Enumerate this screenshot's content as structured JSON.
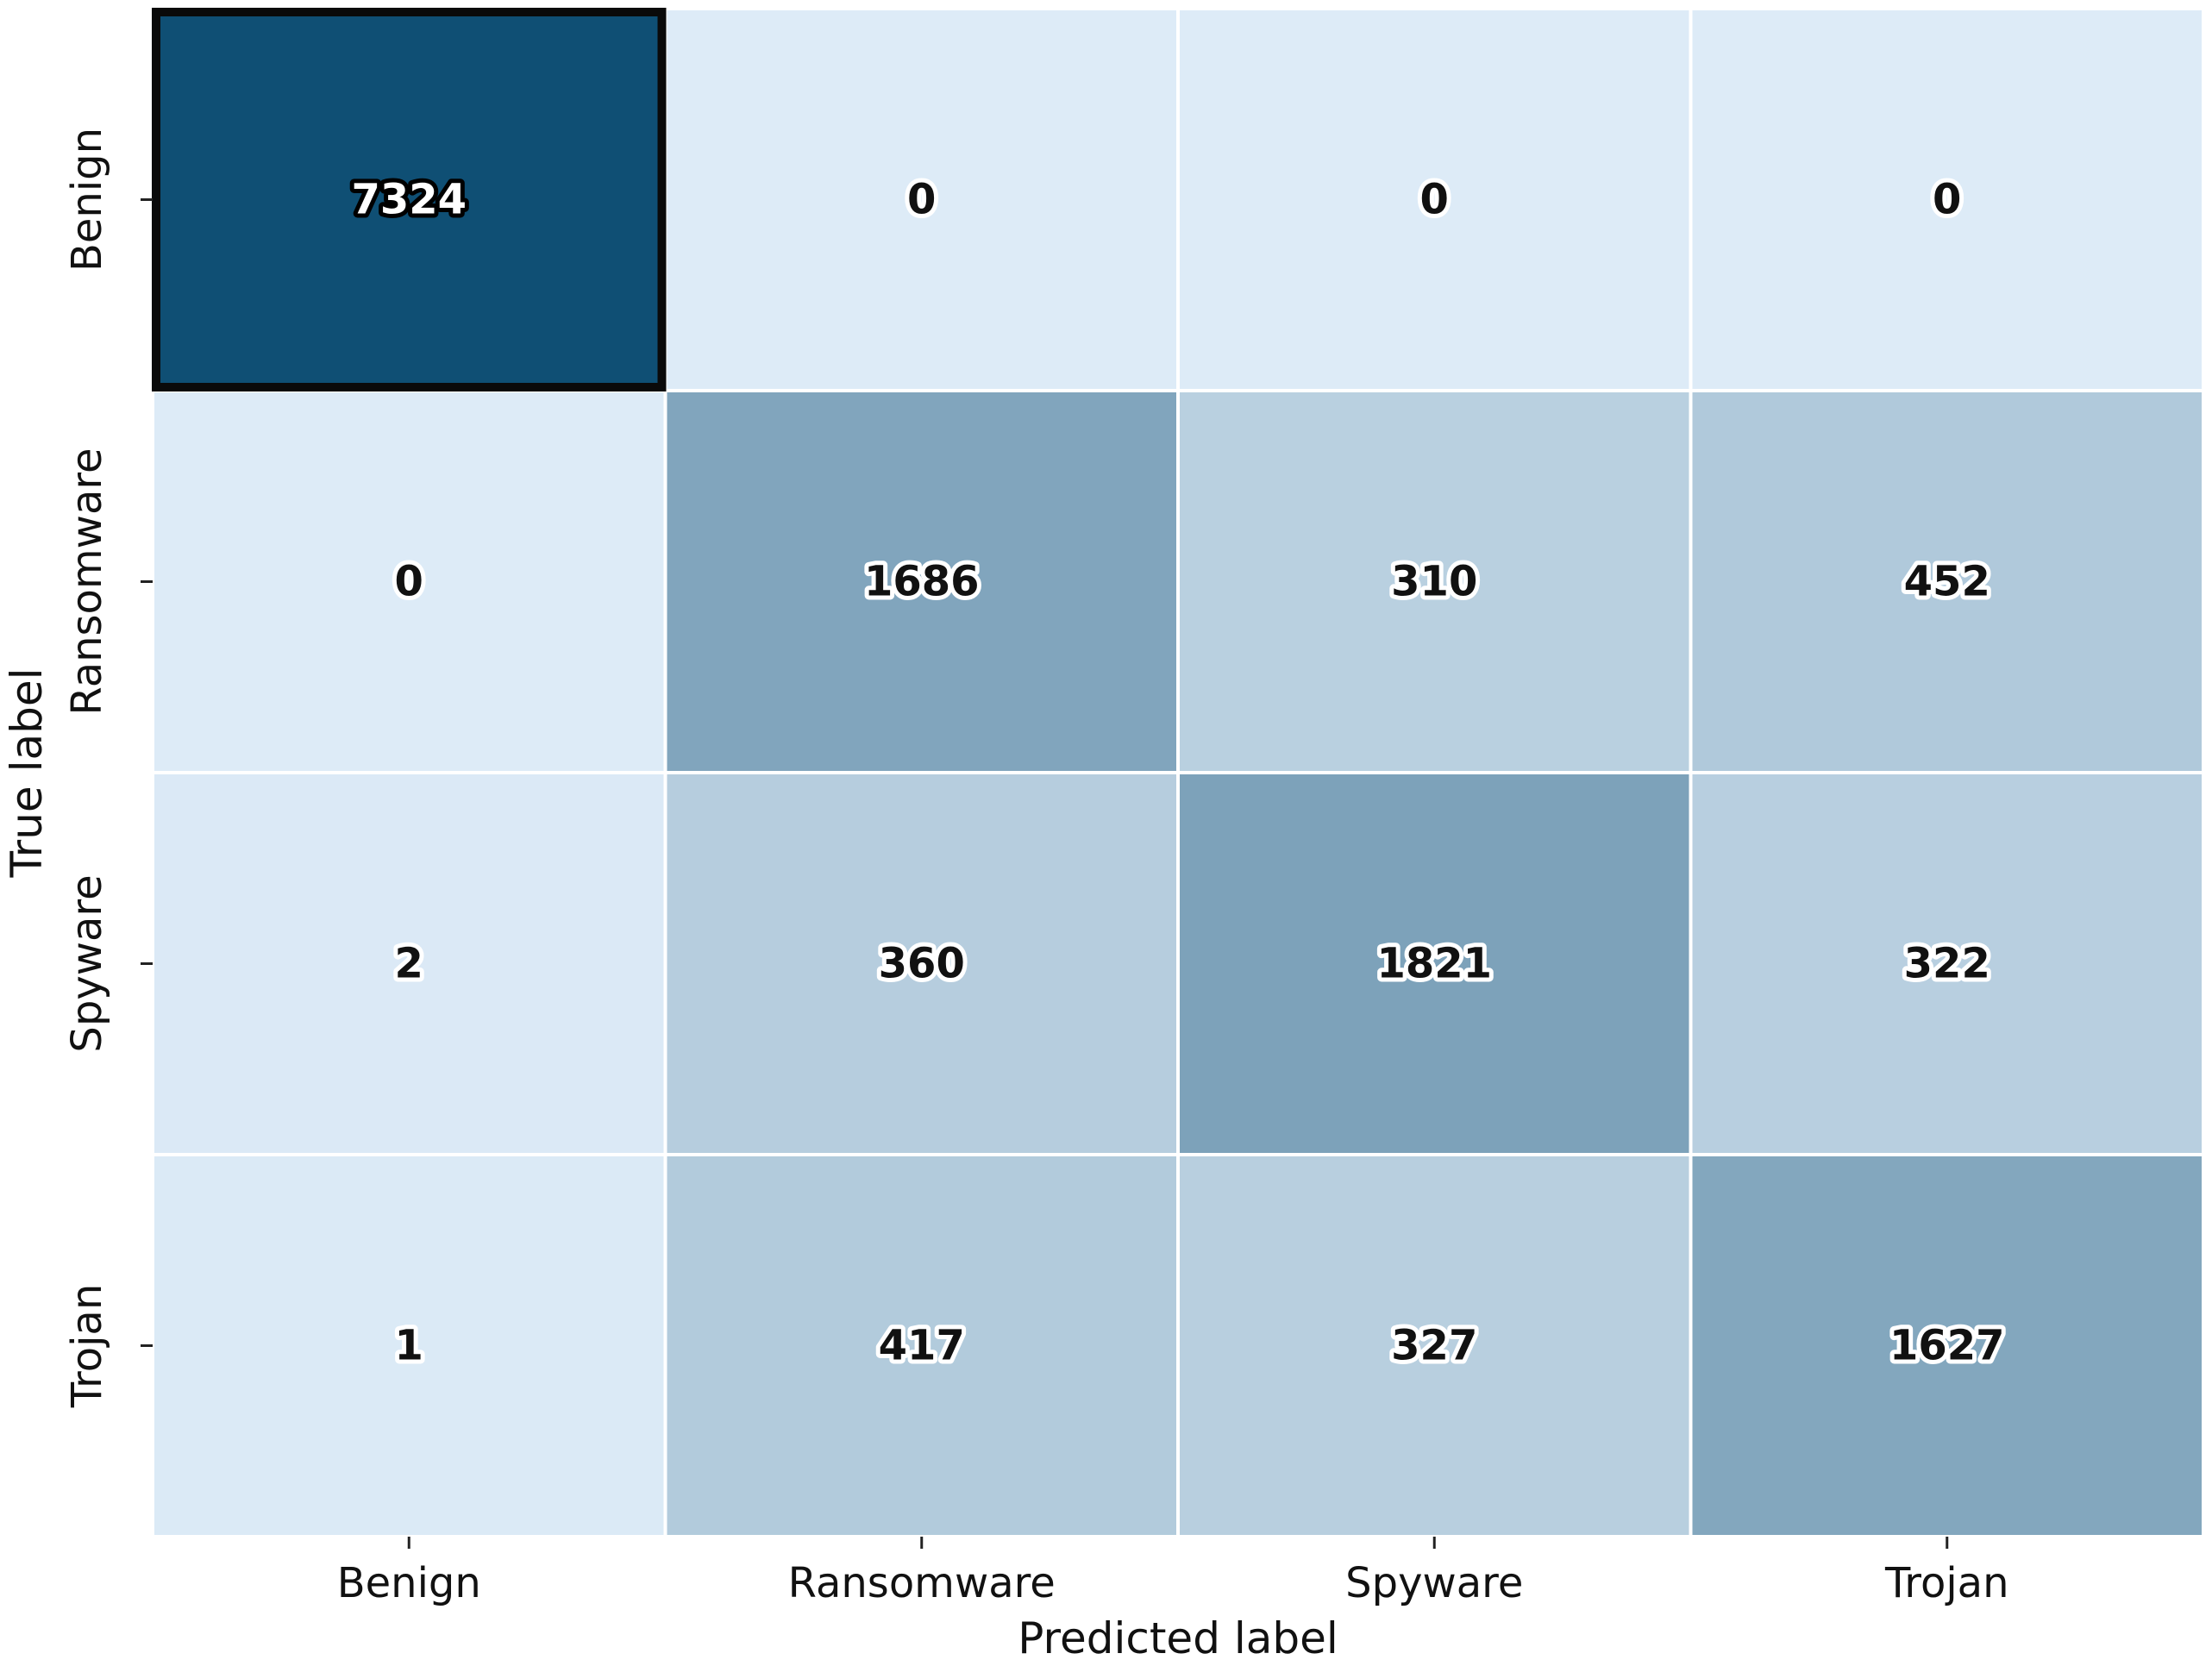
{
  "chart_data": {
    "type": "heatmap",
    "title": "",
    "xlabel": "Predicted label",
    "ylabel": "True label",
    "x_categories": [
      "Benign",
      "Ransomware",
      "Spyware",
      "Trojan"
    ],
    "y_categories": [
      "Benign",
      "Ransomware",
      "Spyware",
      "Trojan"
    ],
    "values": [
      [
        7324,
        0,
        0,
        0
      ],
      [
        0,
        1686,
        310,
        452
      ],
      [
        2,
        360,
        1821,
        322
      ],
      [
        1,
        417,
        327,
        1627
      ]
    ],
    "colormap": "Blues",
    "colors": {
      "low": "#ddebf7",
      "high": "#0f4f74",
      "text_light": "#ffffff",
      "text_dark": "#111111"
    },
    "colorbar": false,
    "grid": false
  }
}
